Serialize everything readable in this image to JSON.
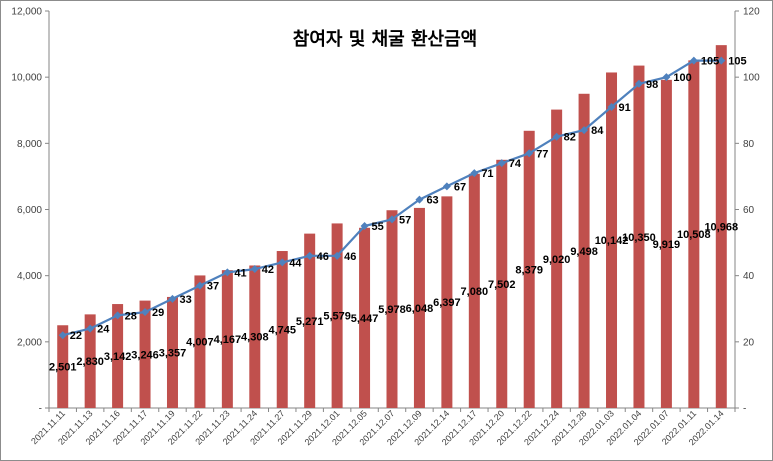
{
  "chart_data": {
    "type": "bar",
    "title": "참여자 및 채굴 환산금액",
    "categories": [
      "2021.11.11",
      "2021.11.13",
      "2021.11.16",
      "2021.11.17",
      "2021.11.19",
      "2021.11.22",
      "2021.11.23",
      "2021.11.24",
      "2021.11.27",
      "2021.11.29",
      "2021.12.01",
      "2021.12.05",
      "2021.12.07",
      "2021.12.09",
      "2021.12.14",
      "2021.12.17",
      "2021.12.20",
      "2021.12.22",
      "2021.12.24",
      "2021.12.28",
      "2022.01.03",
      "2022.01.04",
      "2022.01.07",
      "2022.01.11",
      "2022.01.14"
    ],
    "series": [
      {
        "type": "bar",
        "axis": "left",
        "color": "#c0504d",
        "values": [
          2501,
          2830,
          3142,
          3246,
          3357,
          4007,
          4167,
          4308,
          4745,
          5271,
          5579,
          5447,
          5978,
          6048,
          6397,
          7080,
          7502,
          8379,
          9020,
          9498,
          10142,
          10350,
          9919,
          10508,
          10968
        ],
        "labels": [
          "2,501",
          "2,830",
          "3,142",
          "3,246",
          "3,357",
          "4,007",
          "4,167",
          "4,308",
          "4,745",
          "5,271",
          "5,579",
          "5,447",
          "5,978",
          "6,048",
          "6,397",
          "7,080",
          "7,502",
          "8,379",
          "9,020",
          "9,498",
          "10,142",
          "10,350",
          "9,919",
          "10,508",
          "10,968"
        ]
      },
      {
        "type": "line",
        "axis": "right",
        "color": "#4f81bd",
        "marker": "diamond",
        "values": [
          22,
          24,
          28,
          29,
          33,
          37,
          41,
          42,
          44,
          46,
          46,
          55,
          57,
          63,
          67,
          71,
          74,
          77,
          82,
          84,
          91,
          98,
          100,
          105,
          105
        ]
      }
    ],
    "y_left": {
      "min": 0,
      "max": 12000,
      "ticks": [
        "-",
        "2,000",
        "4,000",
        "6,000",
        "8,000",
        "10,000",
        "12,000"
      ]
    },
    "y_right": {
      "min": 0,
      "max": 120,
      "ticks": [
        "-",
        "20",
        "40",
        "60",
        "80",
        "100",
        "120"
      ]
    },
    "grid": false,
    "legend": "none"
  }
}
